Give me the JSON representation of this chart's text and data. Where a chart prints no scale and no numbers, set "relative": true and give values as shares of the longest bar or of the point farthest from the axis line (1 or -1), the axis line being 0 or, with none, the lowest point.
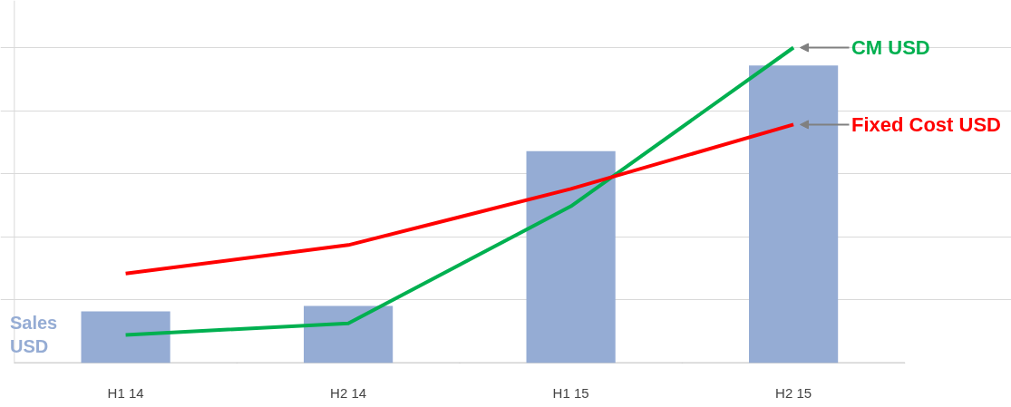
{
  "chart_data": {
    "type": "bar",
    "relative": true,
    "categories": [
      "H1 14",
      "H2 14",
      "H1 15",
      "H2 15"
    ],
    "grid": "y",
    "legend": "right",
    "series": [
      {
        "name": "Sales USD",
        "color": "#95acd4",
        "values": [
          0.164,
          0.181,
          0.672,
          0.943
        ]
      },
      {
        "name": "CM USD",
        "type": "line",
        "color": "#00b050",
        "values": [
          0.089,
          0.126,
          0.497,
          1
        ]
      },
      {
        "name": "Fixed Cost USD",
        "type": "line",
        "color": "#ff0000",
        "values": [
          0.284,
          0.374,
          0.552,
          0.756
        ]
      }
    ]
  }
}
